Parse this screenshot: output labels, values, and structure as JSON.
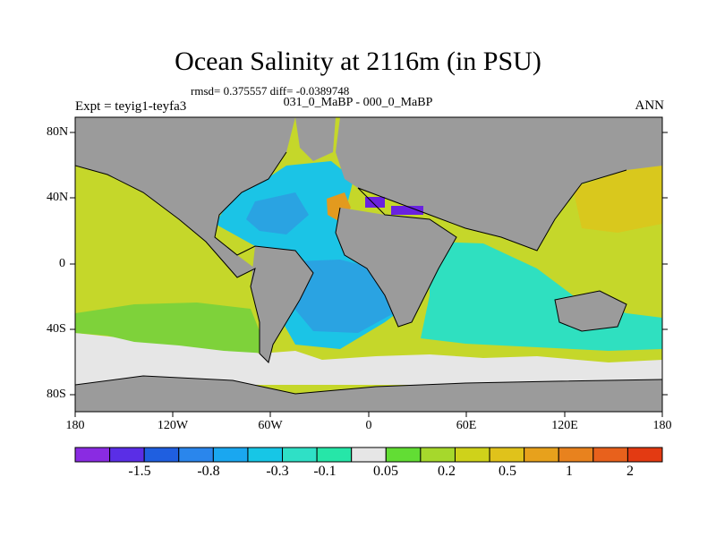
{
  "title": "Ocean Salinity at 2116m (in PSU)",
  "stats": "rmsd= 0.375557 diff= -0.0389748",
  "experiment": "Expt = teyig1-teyfa3",
  "comparison": "031_0_MaBP - 000_0_MaBP",
  "season": "ANN",
  "lat_ticks": [
    "80N",
    "40N",
    "0",
    "40S",
    "80S"
  ],
  "lon_ticks": [
    "180",
    "120W",
    "60W",
    "0",
    "60E",
    "120E",
    "180"
  ],
  "colorbar": {
    "colors": [
      "#8a2be2",
      "#5a2ee6",
      "#1f5fe0",
      "#2a86ec",
      "#1aa7f0",
      "#17c6e6",
      "#2fe0c6",
      "#26e6a8",
      "#e6e6e6",
      "#62dd34",
      "#a6d82c",
      "#cfd21a",
      "#e0c21b",
      "#e7a11c",
      "#e8821e",
      "#e8611c",
      "#e33a12"
    ],
    "tick_labels": [
      "-1.5",
      "-0.8",
      "-0.3",
      "-0.1",
      "0.05",
      "0.2",
      "0.5",
      "1",
      "2"
    ]
  },
  "map_colors": {
    "land": "#9b9b9b",
    "pacific": "#c5d72a",
    "atlantic_deep": "#2aa3e2",
    "atlantic_mid": "#1bc4e6",
    "indian": "#2fe0c0",
    "southern": "#e6e6e6",
    "south_pacific": "#7ed23a",
    "mediterranean": "#6a22e0",
    "med_outflow": "#e39a1e",
    "nw_pacific": "#d9c81d"
  }
}
